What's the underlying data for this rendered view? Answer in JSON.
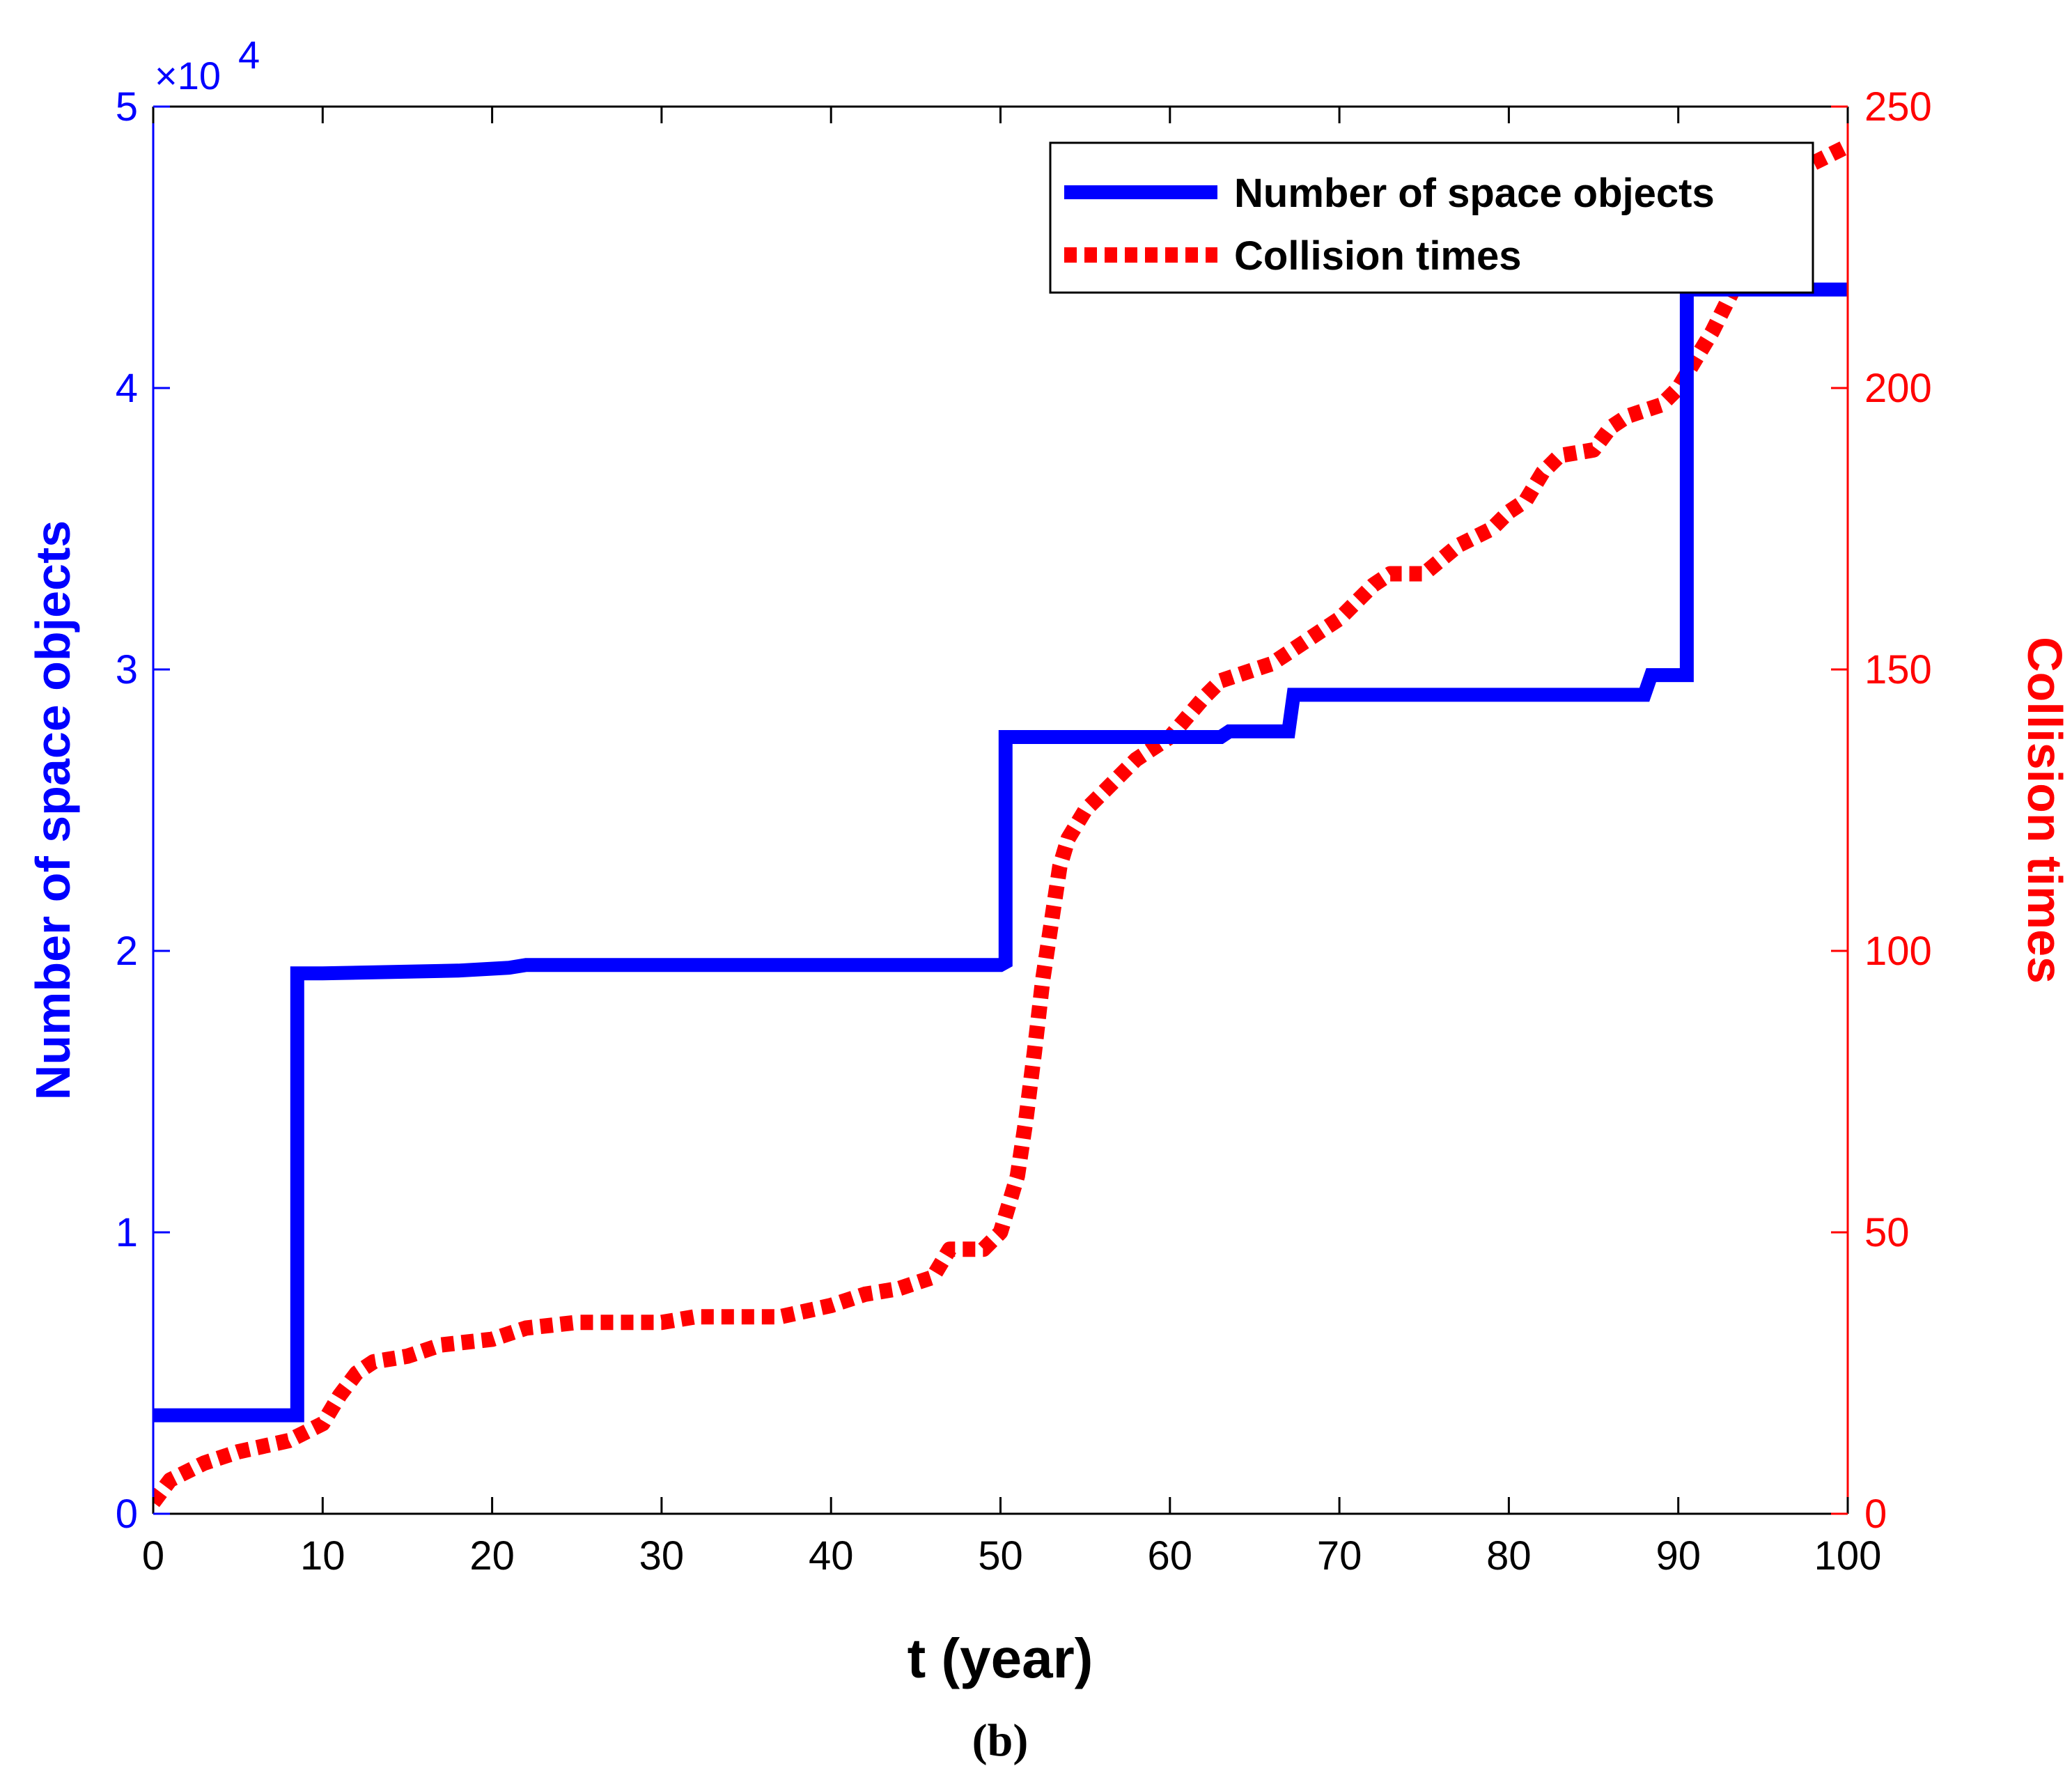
{
  "chart_data": {
    "type": "line",
    "caption": "(b)",
    "xlabel": "t (year)",
    "ylabel_left": "Number of space objects",
    "ylabel_right": "Collision times",
    "xlim": [
      0,
      100
    ],
    "ylim_left": [
      0,
      50000
    ],
    "ylim_right": [
      0,
      250
    ],
    "x_ticks": [
      "0",
      "10",
      "20",
      "30",
      "40",
      "50",
      "60",
      "70",
      "80",
      "90",
      "100"
    ],
    "y_left_ticks": [
      "0",
      "1",
      "2",
      "3",
      "4",
      "5"
    ],
    "y_left_multiplier": "×10",
    "y_left_exponent": "4",
    "y_right_ticks": [
      "0",
      "50",
      "100",
      "150",
      "200",
      "250"
    ],
    "colors": {
      "left_axis": "#0000ff",
      "right_axis": "#ff0000"
    },
    "series": [
      {
        "name": "Number of space objects",
        "axis": "left",
        "color": "#0000ff",
        "style": "solid-step",
        "x": [
          0,
          8.5,
          8.5,
          10,
          18,
          21,
          22,
          50,
          50.3,
          50.3,
          63,
          63.5,
          67,
          67.3,
          75,
          88,
          88.4,
          90.5,
          90.5,
          100
        ],
        "y": [
          3500,
          3500,
          19200,
          19200,
          19300,
          19400,
          19500,
          19500,
          19600,
          27600,
          27600,
          27800,
          27800,
          29100,
          29100,
          29100,
          29800,
          29800,
          43500,
          43500
        ]
      },
      {
        "name": "Collision times",
        "axis": "right",
        "color": "#ff0000",
        "style": "dotted",
        "x": [
          0,
          1,
          3,
          5,
          8,
          10,
          11,
          12,
          13,
          15,
          17,
          20,
          22,
          25,
          30,
          32,
          35,
          37,
          40,
          42,
          44,
          46,
          47,
          49,
          50,
          51,
          51.5,
          52,
          52.5,
          53,
          53.5,
          54,
          55,
          56,
          57,
          58,
          60,
          62,
          63,
          66,
          68,
          70,
          72,
          73,
          75,
          77,
          79,
          80,
          81,
          82,
          83,
          85,
          86,
          87,
          89,
          90,
          91,
          92,
          94,
          96,
          98,
          100
        ],
        "y": [
          2,
          6,
          9,
          11,
          13,
          16,
          21,
          25,
          27,
          28,
          30,
          31,
          33,
          34,
          34,
          35,
          35,
          35,
          37,
          39,
          40,
          42,
          47,
          47,
          50,
          60,
          70,
          82,
          95,
          105,
          115,
          120,
          125,
          128,
          131,
          134,
          138,
          145,
          148,
          151,
          155,
          159,
          165,
          167,
          167,
          172,
          175,
          178,
          180,
          185,
          188,
          189,
          193,
          195,
          197,
          200,
          205,
          210,
          222,
          235,
          240,
          243
        ]
      }
    ],
    "legend": {
      "position": "top-right",
      "entries": [
        "Number of space objects",
        "Collision times"
      ]
    }
  }
}
